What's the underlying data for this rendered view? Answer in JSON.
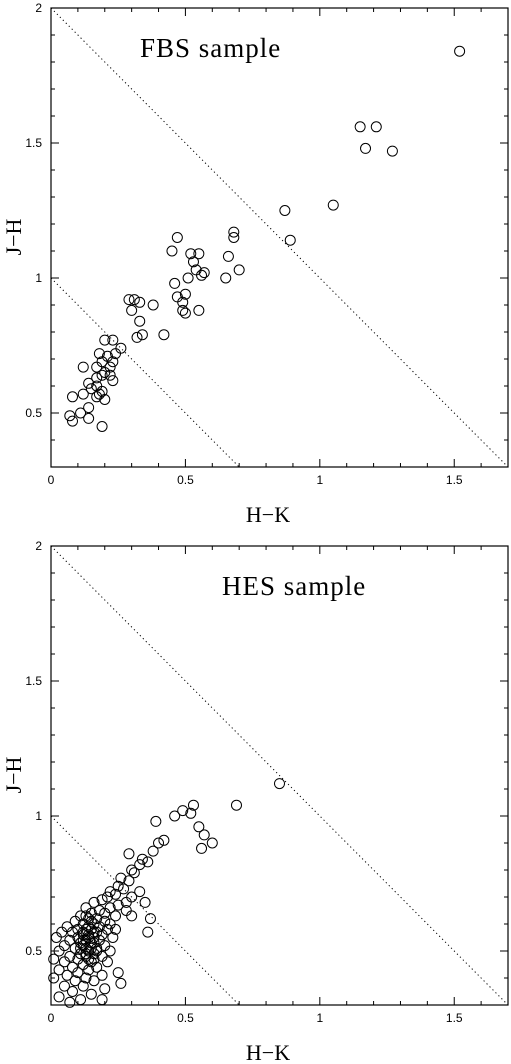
{
  "chart_data": [
    {
      "type": "scatter",
      "title": "FBS sample",
      "xlabel": "H−K",
      "ylabel": "J−H",
      "xlim": [
        0,
        1.7
      ],
      "ylim": [
        0.3,
        2.0
      ],
      "xticks": [
        "0",
        "0.5",
        "1",
        "1.5"
      ],
      "yticks": [
        "0.5",
        "1",
        "1.5",
        "2"
      ],
      "grid": false,
      "reference_lines": [
        {
          "style": "dotted",
          "points": [
            [
              0,
              2.0
            ],
            [
              1.7,
              0.3
            ]
          ]
        },
        {
          "style": "dotted",
          "points": [
            [
              0,
              1.0
            ],
            [
              0.7,
              0.3
            ]
          ]
        }
      ],
      "points": [
        [
          1.52,
          1.84
        ],
        [
          1.15,
          1.56
        ],
        [
          1.21,
          1.56
        ],
        [
          1.17,
          1.48
        ],
        [
          1.27,
          1.47
        ],
        [
          1.05,
          1.27
        ],
        [
          0.87,
          1.25
        ],
        [
          0.89,
          1.14
        ],
        [
          0.47,
          1.15
        ],
        [
          0.68,
          1.17
        ],
        [
          0.68,
          1.15
        ],
        [
          0.45,
          1.1
        ],
        [
          0.52,
          1.09
        ],
        [
          0.55,
          1.09
        ],
        [
          0.66,
          1.08
        ],
        [
          0.53,
          1.06
        ],
        [
          0.54,
          1.03
        ],
        [
          0.57,
          1.02
        ],
        [
          0.7,
          1.03
        ],
        [
          0.56,
          1.01
        ],
        [
          0.65,
          1.0
        ],
        [
          0.51,
          1.0
        ],
        [
          0.46,
          0.98
        ],
        [
          0.5,
          0.94
        ],
        [
          0.47,
          0.93
        ],
        [
          0.38,
          0.9
        ],
        [
          0.33,
          0.91
        ],
        [
          0.29,
          0.92
        ],
        [
          0.31,
          0.92
        ],
        [
          0.49,
          0.91
        ],
        [
          0.49,
          0.88
        ],
        [
          0.55,
          0.88
        ],
        [
          0.3,
          0.88
        ],
        [
          0.5,
          0.87
        ],
        [
          0.33,
          0.84
        ],
        [
          0.34,
          0.79
        ],
        [
          0.32,
          0.78
        ],
        [
          0.42,
          0.79
        ],
        [
          0.2,
          0.77
        ],
        [
          0.23,
          0.77
        ],
        [
          0.26,
          0.74
        ],
        [
          0.24,
          0.72
        ],
        [
          0.18,
          0.72
        ],
        [
          0.21,
          0.71
        ],
        [
          0.19,
          0.69
        ],
        [
          0.23,
          0.69
        ],
        [
          0.22,
          0.67
        ],
        [
          0.17,
          0.67
        ],
        [
          0.2,
          0.65
        ],
        [
          0.12,
          0.67
        ],
        [
          0.19,
          0.64
        ],
        [
          0.22,
          0.64
        ],
        [
          0.17,
          0.63
        ],
        [
          0.23,
          0.62
        ],
        [
          0.14,
          0.61
        ],
        [
          0.17,
          0.6
        ],
        [
          0.15,
          0.59
        ],
        [
          0.19,
          0.58
        ],
        [
          0.18,
          0.57
        ],
        [
          0.12,
          0.57
        ],
        [
          0.17,
          0.56
        ],
        [
          0.08,
          0.56
        ],
        [
          0.2,
          0.55
        ],
        [
          0.14,
          0.52
        ],
        [
          0.11,
          0.5
        ],
        [
          0.14,
          0.48
        ],
        [
          0.07,
          0.49
        ],
        [
          0.08,
          0.47
        ],
        [
          0.19,
          0.45
        ]
      ]
    },
    {
      "type": "scatter",
      "title": "HES sample",
      "xlabel": "H−K",
      "ylabel": "J−H",
      "xlim": [
        0,
        1.7
      ],
      "ylim": [
        0.3,
        2.0
      ],
      "xticks": [
        "0",
        "0.5",
        "1",
        "1.5"
      ],
      "yticks": [
        "0.5",
        "1",
        "1.5",
        "2"
      ],
      "grid": false,
      "reference_lines": [
        {
          "style": "dotted",
          "points": [
            [
              0,
              2.0
            ],
            [
              1.7,
              0.3
            ]
          ]
        },
        {
          "style": "dotted",
          "points": [
            [
              0,
              1.0
            ],
            [
              0.7,
              0.3
            ]
          ]
        }
      ],
      "points": [
        [
          0.85,
          1.12
        ],
        [
          0.69,
          1.04
        ],
        [
          0.53,
          1.04
        ],
        [
          0.49,
          1.02
        ],
        [
          0.52,
          1.01
        ],
        [
          0.46,
          1.0
        ],
        [
          0.39,
          0.98
        ],
        [
          0.55,
          0.96
        ],
        [
          0.42,
          0.91
        ],
        [
          0.4,
          0.9
        ],
        [
          0.57,
          0.93
        ],
        [
          0.6,
          0.9
        ],
        [
          0.56,
          0.88
        ],
        [
          0.38,
          0.87
        ],
        [
          0.29,
          0.86
        ],
        [
          0.34,
          0.84
        ],
        [
          0.36,
          0.83
        ],
        [
          0.33,
          0.82
        ],
        [
          0.3,
          0.8
        ],
        [
          0.31,
          0.79
        ],
        [
          0.26,
          0.77
        ],
        [
          0.29,
          0.76
        ],
        [
          0.25,
          0.74
        ],
        [
          0.27,
          0.73
        ],
        [
          0.22,
          0.72
        ],
        [
          0.33,
          0.72
        ],
        [
          0.24,
          0.71
        ],
        [
          0.3,
          0.7
        ],
        [
          0.35,
          0.68
        ],
        [
          0.28,
          0.68
        ],
        [
          0.21,
          0.7
        ],
        [
          0.19,
          0.69
        ],
        [
          0.16,
          0.68
        ],
        [
          0.25,
          0.67
        ],
        [
          0.22,
          0.66
        ],
        [
          0.13,
          0.66
        ],
        [
          0.18,
          0.65
        ],
        [
          0.15,
          0.64
        ],
        [
          0.2,
          0.64
        ],
        [
          0.11,
          0.63
        ],
        [
          0.24,
          0.63
        ],
        [
          0.17,
          0.62
        ],
        [
          0.14,
          0.62
        ],
        [
          0.09,
          0.61
        ],
        [
          0.2,
          0.61
        ],
        [
          0.12,
          0.6
        ],
        [
          0.16,
          0.6
        ],
        [
          0.22,
          0.6
        ],
        [
          0.06,
          0.59
        ],
        [
          0.18,
          0.59
        ],
        [
          0.13,
          0.58
        ],
        [
          0.1,
          0.58
        ],
        [
          0.15,
          0.58
        ],
        [
          0.21,
          0.58
        ],
        [
          0.04,
          0.57
        ],
        [
          0.08,
          0.57
        ],
        [
          0.17,
          0.57
        ],
        [
          0.12,
          0.56
        ],
        [
          0.14,
          0.56
        ],
        [
          0.19,
          0.56
        ],
        [
          0.02,
          0.55
        ],
        [
          0.1,
          0.55
        ],
        [
          0.16,
          0.55
        ],
        [
          0.23,
          0.55
        ],
        [
          0.13,
          0.54
        ],
        [
          0.07,
          0.54
        ],
        [
          0.18,
          0.54
        ],
        [
          0.11,
          0.53
        ],
        [
          0.15,
          0.53
        ],
        [
          0.05,
          0.52
        ],
        [
          0.2,
          0.52
        ],
        [
          0.12,
          0.52
        ],
        [
          0.09,
          0.51
        ],
        [
          0.17,
          0.51
        ],
        [
          0.14,
          0.5
        ],
        [
          0.03,
          0.5
        ],
        [
          0.22,
          0.5
        ],
        [
          0.11,
          0.49
        ],
        [
          0.16,
          0.49
        ],
        [
          0.07,
          0.48
        ],
        [
          0.13,
          0.48
        ],
        [
          0.19,
          0.48
        ],
        [
          0.01,
          0.47
        ],
        [
          0.1,
          0.47
        ],
        [
          0.15,
          0.46
        ],
        [
          0.05,
          0.46
        ],
        [
          0.21,
          0.46
        ],
        [
          0.12,
          0.45
        ],
        [
          0.08,
          0.44
        ],
        [
          0.17,
          0.44
        ],
        [
          0.03,
          0.43
        ],
        [
          0.14,
          0.43
        ],
        [
          0.1,
          0.42
        ],
        [
          0.25,
          0.42
        ],
        [
          0.06,
          0.41
        ],
        [
          0.19,
          0.41
        ],
        [
          0.13,
          0.4
        ],
        [
          0.01,
          0.4
        ],
        [
          0.16,
          0.39
        ],
        [
          0.09,
          0.39
        ],
        [
          0.26,
          0.38
        ],
        [
          0.05,
          0.37
        ],
        [
          0.12,
          0.37
        ],
        [
          0.2,
          0.36
        ],
        [
          0.08,
          0.35
        ],
        [
          0.15,
          0.34
        ],
        [
          0.03,
          0.33
        ],
        [
          0.11,
          0.32
        ],
        [
          0.19,
          0.32
        ],
        [
          0.07,
          0.31
        ],
        [
          0.36,
          0.57
        ],
        [
          0.37,
          0.62
        ],
        [
          0.28,
          0.65
        ],
        [
          0.3,
          0.63
        ],
        [
          0.24,
          0.58
        ],
        [
          0.13,
          0.63
        ],
        [
          0.15,
          0.61
        ],
        [
          0.14,
          0.59
        ],
        [
          0.12,
          0.57
        ],
        [
          0.16,
          0.57
        ],
        [
          0.14,
          0.55
        ],
        [
          0.12,
          0.54
        ],
        [
          0.16,
          0.53
        ],
        [
          0.13,
          0.51
        ],
        [
          0.15,
          0.51
        ],
        [
          0.11,
          0.51
        ],
        [
          0.17,
          0.5
        ],
        [
          0.13,
          0.49
        ],
        [
          0.14,
          0.47
        ],
        [
          0.16,
          0.47
        ]
      ]
    }
  ]
}
